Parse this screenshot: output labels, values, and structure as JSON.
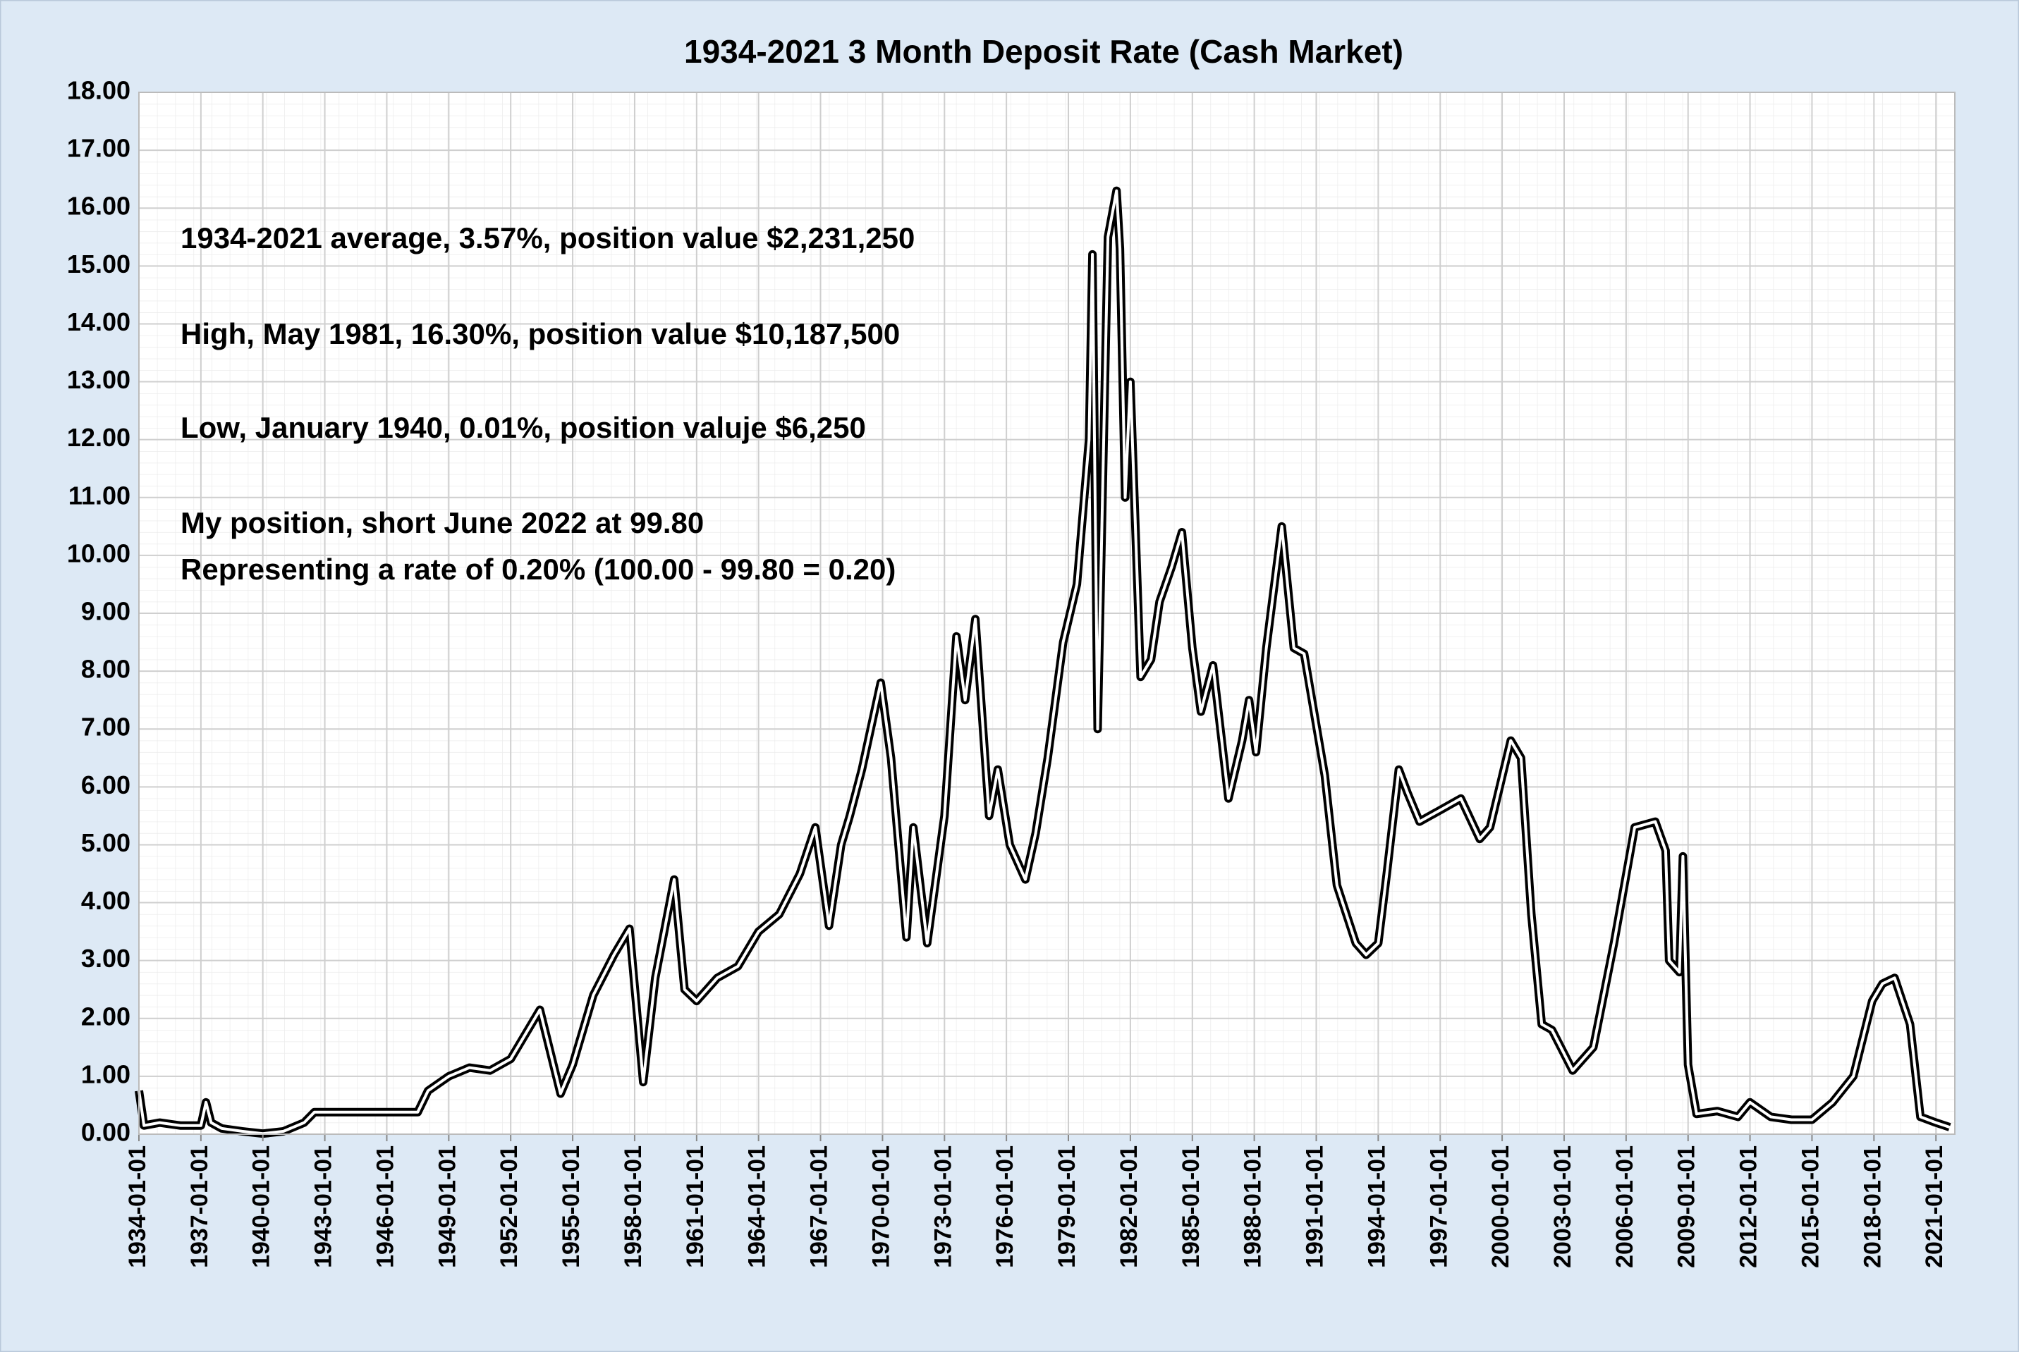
{
  "chart_data": {
    "type": "line",
    "title": "1934-2021  3 Month Deposit Rate (Cash Market)",
    "annotations": [
      "1934-2021 average, 3.57%, position value $2,231,250",
      "High, May 1981, 16.30%, position value $10,187,500",
      "Low, January 1940, 0.01%, position valuje $6,250",
      "My position, short June 2022 at 99.80",
      "Representing a rate of 0.20% (100.00 - 99.80 = 0.20)"
    ],
    "grid": true,
    "xlim": [
      "1934-01-01",
      "2021-12-01"
    ],
    "xticks": [
      "1934-01-01",
      "1937-01-01",
      "1940-01-01",
      "1943-01-01",
      "1946-01-01",
      "1949-01-01",
      "1952-01-01",
      "1955-01-01",
      "1958-01-01",
      "1961-01-01",
      "1964-01-01",
      "1967-01-01",
      "1970-01-01",
      "1973-01-01",
      "1976-01-01",
      "1979-01-01",
      "1982-01-01",
      "1985-01-01",
      "1988-01-01",
      "1991-01-01",
      "1994-01-01",
      "1997-01-01",
      "2000-01-01",
      "2003-01-01",
      "2006-01-01",
      "2009-01-01",
      "2012-01-01",
      "2015-01-01",
      "2018-01-01",
      "2021-01-01"
    ],
    "ylim": [
      0,
      18
    ],
    "yticks": [
      {
        "value": 0,
        "label": "0.00"
      },
      {
        "value": 1,
        "label": "1.00"
      },
      {
        "value": 2,
        "label": "2.00"
      },
      {
        "value": 3,
        "label": "3.00"
      },
      {
        "value": 4,
        "label": "4.00"
      },
      {
        "value": 5,
        "label": "5.00"
      },
      {
        "value": 6,
        "label": "6.00"
      },
      {
        "value": 7,
        "label": "7.00"
      },
      {
        "value": 8,
        "label": "8.00"
      },
      {
        "value": 9,
        "label": "9.00"
      },
      {
        "value": 10,
        "label": "10.00"
      },
      {
        "value": 11,
        "label": "11.00"
      },
      {
        "value": 12,
        "label": "12.00"
      },
      {
        "value": 13,
        "label": "13.00"
      },
      {
        "value": 14,
        "label": "14.00"
      },
      {
        "value": 15,
        "label": "15.00"
      },
      {
        "value": 16,
        "label": "16.00"
      },
      {
        "value": 17,
        "label": "17.00"
      },
      {
        "value": 18,
        "label": "18.00"
      }
    ],
    "x": [
      "1934-01-01",
      "1934-04-01",
      "1935-01-01",
      "1936-01-01",
      "1937-01-01",
      "1937-04-01",
      "1937-07-01",
      "1938-01-01",
      "1939-01-01",
      "1940-01-01",
      "1941-01-01",
      "1942-01-01",
      "1942-07-01",
      "1943-01-01",
      "1947-07-01",
      "1948-01-01",
      "1949-01-01",
      "1950-01-01",
      "1951-01-01",
      "1952-01-01",
      "1953-06-01",
      "1954-06-01",
      "1955-01-01",
      "1956-01-01",
      "1957-01-01",
      "1957-10-01",
      "1958-06-01",
      "1959-01-01",
      "1959-12-01",
      "1960-06-01",
      "1961-01-01",
      "1962-01-01",
      "1963-01-01",
      "1964-01-01",
      "1965-01-01",
      "1966-01-01",
      "1966-10-01",
      "1967-06-01",
      "1968-01-01",
      "1968-06-01",
      "1969-01-01",
      "1969-12-01",
      "1970-06-01",
      "1971-03-01",
      "1971-07-01",
      "1972-03-01",
      "1973-01-01",
      "1973-08-01",
      "1974-01-01",
      "1974-07-01",
      "1975-03-01",
      "1975-08-01",
      "1976-03-01",
      "1976-12-01",
      "1977-06-01",
      "1978-01-01",
      "1978-10-01",
      "1979-06-01",
      "1980-01-01",
      "1980-03-01",
      "1980-06-01",
      "1980-12-01",
      "1981-05-01",
      "1981-07-01",
      "1981-10-01",
      "1982-01-01",
      "1982-07-01",
      "1983-01-01",
      "1983-06-01",
      "1984-01-01",
      "1984-07-01",
      "1985-01-01",
      "1985-06-01",
      "1986-01-01",
      "1986-10-01",
      "1987-06-01",
      "1987-10-01",
      "1988-02-01",
      "1988-08-01",
      "1989-05-01",
      "1989-12-01",
      "1990-06-01",
      "1991-06-01",
      "1992-01-01",
      "1992-12-01",
      "1993-06-01",
      "1994-01-01",
      "1994-06-01",
      "1995-01-01",
      "1995-06-01",
      "1996-01-01",
      "1997-01-01",
      "1998-01-01",
      "1998-12-01",
      "1999-06-01",
      "2000-06-01",
      "2000-12-01",
      "2001-06-01",
      "2001-12-01",
      "2002-06-01",
      "2003-06-01",
      "2004-06-01",
      "2005-06-01",
      "2006-06-01",
      "2007-06-01",
      "2007-12-01",
      "2008-02-01",
      "2008-08-01",
      "2008-10-01",
      "2009-01-01",
      "2009-06-01",
      "2010-06-01",
      "2011-06-01",
      "2012-01-01",
      "2013-01-01",
      "2014-01-01",
      "2015-01-01",
      "2016-01-01",
      "2017-01-01",
      "2017-12-01",
      "2018-06-01",
      "2019-01-01",
      "2019-10-01",
      "2020-04-01",
      "2021-01-01",
      "2021-09-01"
    ],
    "series": [
      {
        "color": "#000000",
        "values": [
          0.75,
          0.15,
          0.2,
          0.15,
          0.15,
          0.55,
          0.2,
          0.1,
          0.05,
          0.01,
          0.05,
          0.2,
          0.38,
          0.38,
          0.38,
          0.75,
          1.0,
          1.15,
          1.1,
          1.3,
          2.15,
          0.7,
          1.2,
          2.4,
          3.1,
          3.55,
          0.9,
          2.7,
          4.4,
          2.5,
          2.3,
          2.7,
          2.9,
          3.5,
          3.8,
          4.5,
          5.3,
          3.6,
          5.0,
          5.5,
          6.3,
          7.8,
          6.5,
          3.4,
          5.3,
          3.3,
          5.5,
          8.6,
          7.5,
          8.9,
          5.5,
          6.3,
          5.0,
          4.4,
          5.2,
          6.5,
          8.5,
          9.5,
          12.0,
          15.2,
          7.0,
          15.5,
          16.3,
          15.3,
          11.0,
          13.0,
          7.9,
          8.2,
          9.2,
          9.8,
          10.4,
          8.4,
          7.3,
          8.1,
          5.8,
          6.8,
          7.5,
          6.6,
          8.4,
          10.5,
          8.4,
          8.3,
          6.2,
          4.3,
          3.3,
          3.1,
          3.3,
          4.5,
          6.3,
          5.9,
          5.4,
          5.6,
          5.8,
          5.1,
          5.3,
          6.8,
          6.5,
          3.8,
          1.9,
          1.8,
          1.1,
          1.5,
          3.3,
          5.3,
          5.4,
          4.9,
          3.0,
          2.8,
          4.8,
          1.2,
          0.35,
          0.4,
          0.3,
          0.55,
          0.3,
          0.25,
          0.25,
          0.55,
          1.0,
          2.3,
          2.6,
          2.7,
          1.9,
          0.3,
          0.2,
          0.12
        ]
      }
    ]
  }
}
